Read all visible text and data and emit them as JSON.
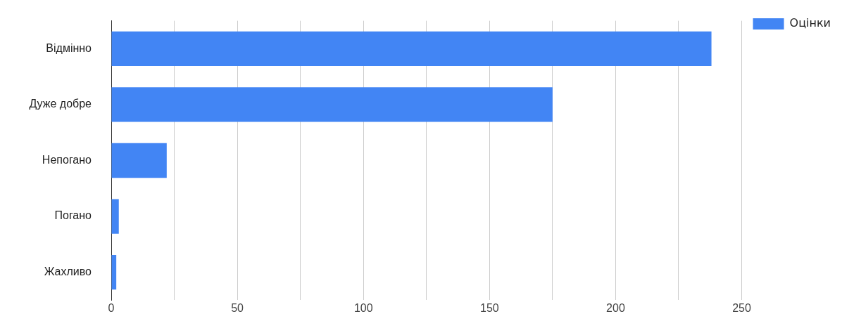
{
  "chart_data": {
    "type": "bar",
    "orientation": "horizontal",
    "categories": [
      "Відмінно",
      "Дуже добре",
      "Непогано",
      "Погано",
      "Жахливо"
    ],
    "series": [
      {
        "name": "Оцінки",
        "color": "#4285f4",
        "values": [
          238,
          175,
          22,
          3,
          2
        ]
      }
    ],
    "xlim": [
      0,
      250
    ],
    "xticks": [
      0,
      {
        "value": 25,
        "label": null
      },
      50,
      {
        "value": 75,
        "label": null
      },
      100,
      {
        "value": 125,
        "label": null
      },
      150,
      {
        "value": 175,
        "label": null
      },
      200,
      {
        "value": 225,
        "label": null
      },
      250
    ],
    "grid": "x",
    "legend": "top right"
  }
}
